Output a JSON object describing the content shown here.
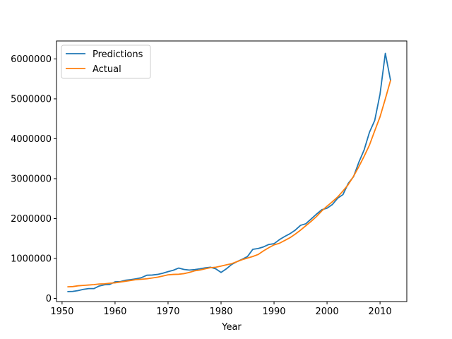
{
  "chart_data": {
    "type": "line",
    "xlabel": "Year",
    "ylabel": "",
    "xlim": [
      1948.95,
      2015.05
    ],
    "ylim": [
      -80000,
      6450000
    ],
    "xticks": [
      1950,
      1960,
      1970,
      1980,
      1990,
      2000,
      2010
    ],
    "yticks": [
      0,
      1000000,
      2000000,
      3000000,
      4000000,
      5000000,
      6000000
    ],
    "grid": false,
    "legend": "upper left",
    "x": [
      1951,
      1952,
      1953,
      1954,
      1955,
      1956,
      1957,
      1958,
      1959,
      1960,
      1961,
      1962,
      1963,
      1964,
      1965,
      1966,
      1967,
      1968,
      1969,
      1970,
      1971,
      1972,
      1973,
      1974,
      1975,
      1976,
      1977,
      1978,
      1979,
      1980,
      1981,
      1982,
      1983,
      1984,
      1985,
      1986,
      1987,
      1988,
      1989,
      1990,
      1991,
      1992,
      1993,
      1994,
      1995,
      1996,
      1997,
      1998,
      1999,
      2000,
      2001,
      2002,
      2003,
      2004,
      2005,
      2006,
      2007,
      2008,
      2009,
      2010,
      2011,
      2012
    ],
    "series": [
      {
        "name": "Predictions",
        "color": "#1f77b4",
        "values": [
          170000,
          175000,
          195000,
          225000,
          245000,
          245000,
          310000,
          340000,
          350000,
          415000,
          420000,
          455000,
          470000,
          490000,
          520000,
          580000,
          585000,
          600000,
          630000,
          670000,
          705000,
          760000,
          725000,
          710000,
          720000,
          740000,
          765000,
          780000,
          740000,
          650000,
          740000,
          850000,
          920000,
          980000,
          1050000,
          1230000,
          1250000,
          1290000,
          1350000,
          1370000,
          1470000,
          1550000,
          1620000,
          1710000,
          1830000,
          1870000,
          1990000,
          2110000,
          2220000,
          2260000,
          2350000,
          2510000,
          2600000,
          2880000,
          3050000,
          3410000,
          3720000,
          4160000,
          4460000,
          5120000,
          6140000,
          5450000
        ]
      },
      {
        "name": "Actual",
        "color": "#ff7f0e",
        "values": [
          290000,
          295000,
          315000,
          325000,
          335000,
          345000,
          360000,
          365000,
          380000,
          390000,
          410000,
          430000,
          450000,
          470000,
          480000,
          490000,
          510000,
          530000,
          560000,
          590000,
          600000,
          605000,
          620000,
          650000,
          690000,
          710000,
          740000,
          770000,
          780000,
          810000,
          840000,
          870000,
          920000,
          970000,
          1010000,
          1050000,
          1100000,
          1190000,
          1270000,
          1340000,
          1380000,
          1450000,
          1520000,
          1610000,
          1710000,
          1820000,
          1930000,
          2050000,
          2190000,
          2310000,
          2420000,
          2540000,
          2690000,
          2850000,
          3060000,
          3300000,
          3560000,
          3840000,
          4200000,
          4550000,
          5000000,
          5470000
        ]
      }
    ]
  }
}
